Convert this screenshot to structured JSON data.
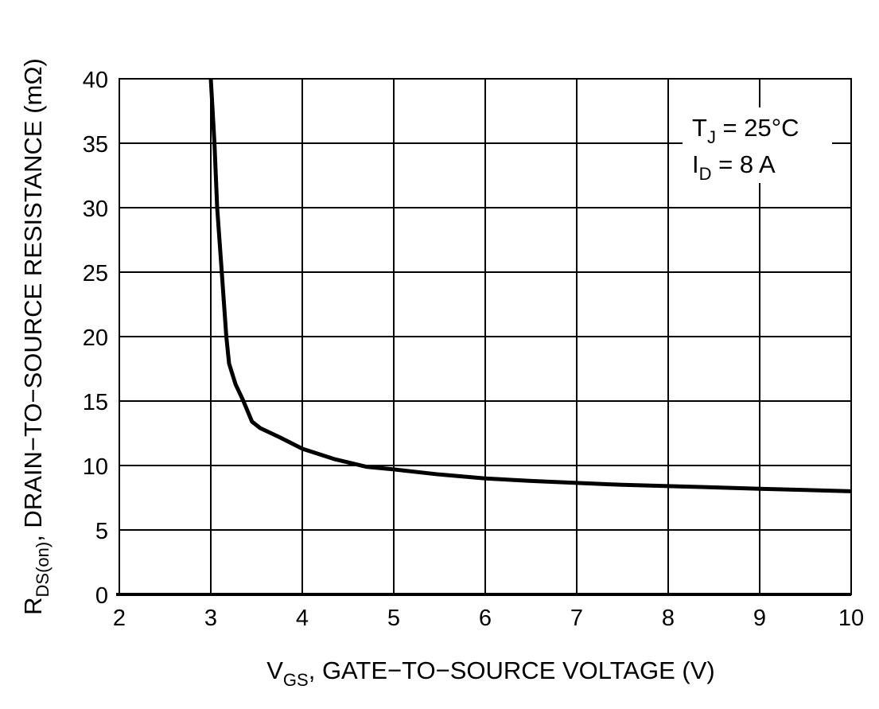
{
  "chart_data": {
    "type": "line",
    "title": "",
    "xlabel": {
      "main": "V",
      "sub": "GS",
      "rest": ", GATE−TO−SOURCE VOLTAGE (V)"
    },
    "ylabel": {
      "main": "R",
      "sub": "DS(on)",
      "rest": ", DRAIN−TO−SOURCE RESISTANCE (mΩ)"
    },
    "xlim": [
      2,
      10
    ],
    "ylim": [
      0,
      40
    ],
    "xticks": [
      "2",
      "3",
      "4",
      "5",
      "6",
      "7",
      "8",
      "9",
      "10"
    ],
    "yticks": [
      "0",
      "5",
      "10",
      "15",
      "20",
      "25",
      "30",
      "35",
      "40"
    ],
    "grid": true,
    "annotation": {
      "line1": {
        "main": "T",
        "sub": "J",
        "rest": " = 25°C"
      },
      "line2": {
        "main": "I",
        "sub": "D",
        "rest": " = 8 A"
      }
    },
    "series": [
      {
        "color": "#000000",
        "x": [
          3.0,
          3.04,
          3.07,
          3.12,
          3.17,
          3.2,
          3.27,
          3.35,
          3.45,
          3.54,
          3.75,
          4.0,
          4.35,
          4.7,
          5.0,
          5.5,
          6.0,
          6.5,
          7.0,
          7.5,
          8.0,
          8.5,
          9.0,
          9.5,
          10.0
        ],
        "y": [
          40,
          35,
          30,
          25,
          20,
          17.9,
          16.3,
          15.1,
          13.4,
          12.9,
          12.2,
          11.3,
          10.5,
          9.9,
          9.7,
          9.3,
          9.0,
          8.8,
          8.65,
          8.5,
          8.4,
          8.3,
          8.2,
          8.1,
          8.0
        ]
      }
    ]
  }
}
